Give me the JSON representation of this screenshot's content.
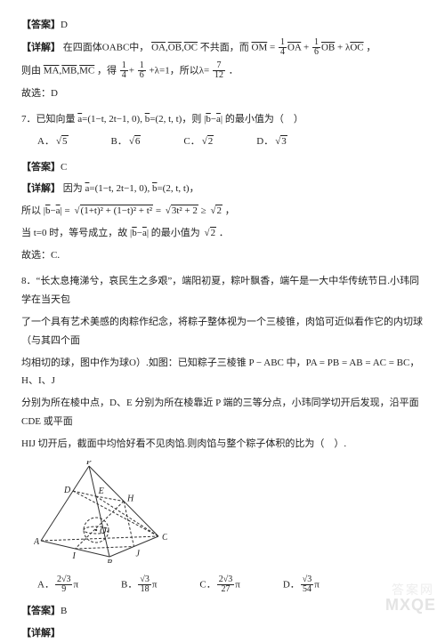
{
  "q6": {
    "answer_label": "【答案】",
    "answer_value": "D",
    "expl_label": "【详解】",
    "expl_l1_a": "在四面体OABC中，",
    "expl_l1_b": "不共面，而",
    "expl_l1_c": "，",
    "vec_OA": "OA",
    "vec_OB": "OB",
    "vec_OC": "OC",
    "vec_OM": "OM",
    "coef1_num": "1",
    "coef1_den": "4",
    "coef2_num": "1",
    "coef2_den": "6",
    "lambda": "λ",
    "expl_l2_a": "则由",
    "vec_MA": "MA",
    "vec_MB": "MB",
    "vec_MC": "MC",
    "expl_l2_b": "，得",
    "sum_eq": "+λ=1，所以λ=",
    "res_num": "7",
    "res_den": "12",
    "expl_l2_c": "．",
    "end": "故选：D"
  },
  "q7": {
    "stem_a": "7．已知向量",
    "vec_a": "a",
    "vec_b": "b",
    "a_expr": "=(1−t, 2t−1, 0), ",
    "b_expr": "=(2, t, t)，则",
    "stem_b": "的最小值为（　）",
    "opts": {
      "A": "A．",
      "B": "B．",
      "C": "C．",
      "D": "D．",
      "vA": "5",
      "vB": "6",
      "vC": "2",
      "vD": "3"
    },
    "answer_label": "【答案】",
    "answer_value": "C",
    "expl_label": "【详解】",
    "expl_l1": "因为",
    "a_expr2": "=(1−t, 2t−1, 0), ",
    "b_expr2": "=(2, t, t)，",
    "expl_l2_a": "所以",
    "mid": "=",
    "under": "(1+t)² + (1−t)² + t²",
    "eq2": "=",
    "under2": "3t² + 2",
    "geq": " ≥ ",
    "rt2": "2",
    "comma": "，",
    "expl_l3_a": "当 t=0 时，等号成立，故",
    "expl_l3_b": "的最小值为",
    "expl_l3_c": "．",
    "end": "故选：C."
  },
  "q8": {
    "stem1": "8．“长太息掩涕兮，哀民生之多艰”，端阳初夏，粽叶飘香，端午是一大中华传统节日.小玮同学在当天包",
    "stem2": "了一个具有艺术美感的肉粽作纪念，将粽子整体视为一个三棱锥，肉馅可近似看作它的内切球（与其四个面",
    "stem3": "均相切的球，图中作为球O）.如图：已知粽子三棱锥 P − ABC 中，PA = PB = AB = AC = BC，H、I、J",
    "stem4": "分别为所在棱中点，D、E 分别为所在棱靠近 P 端的三等分点，小玮同学切开后发现，沿平面 CDE 或平面",
    "stem5": "HIJ 切开后，截面中均恰好看不见肉馅.则肉馅与整个粽子体积的比为（　）.",
    "opts": {
      "A": "A．",
      "B": "B．",
      "C": "C．",
      "D": "D．",
      "An": "2√3",
      "Ad": "9",
      "Bn": "√3",
      "Bd": "18",
      "Cn": "2√3",
      "Cd": "27",
      "Dn": "√3",
      "Dd": "54",
      "pi": "π"
    },
    "answer_label": "【答案】",
    "answer_value": "B",
    "expl_label": "【详解】"
  },
  "fig": {
    "labels": {
      "P": "P",
      "A": "A",
      "B": "B",
      "C": "C",
      "D": "D",
      "E": "E",
      "H": "H",
      "I": "I",
      "J": "J",
      "O": "O"
    },
    "stroke": "#333333",
    "dash": "3,2",
    "circle_r": 14
  },
  "wm1": "答案网",
  "wm2": "MXQE"
}
